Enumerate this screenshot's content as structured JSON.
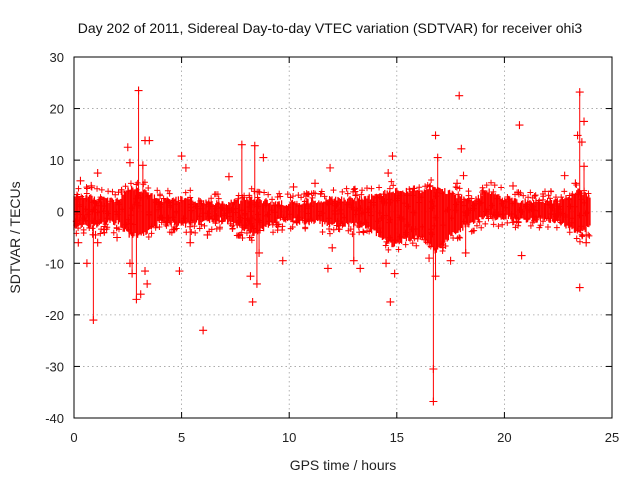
{
  "chart_data": {
    "type": "scatter",
    "title": "Day 202 of 2011, Sidereal Day-to-day VTEC variation (SDTVAR) for receiver ohi3",
    "xlabel": "GPS time / hours",
    "ylabel": "SDTVAR / TECUs",
    "xlim": [
      0,
      25
    ],
    "ylim": [
      -40,
      30
    ],
    "xticks": [
      0,
      5,
      10,
      15,
      20,
      25
    ],
    "yticks": [
      -40,
      -30,
      -20,
      -10,
      0,
      10,
      20,
      30
    ],
    "xtick_labels": [
      "0",
      "5",
      "10",
      "15",
      "20",
      "25"
    ],
    "ytick_labels": [
      "-40",
      "-30",
      "-20",
      "-10",
      "0",
      "10",
      "20",
      "30"
    ],
    "grid": true,
    "marker": "plus",
    "color": "#ff0000",
    "series": [
      {
        "name": "SDTVAR",
        "envelope": [
          {
            "x": 0.0,
            "lo": -2.5,
            "hi": 2.5
          },
          {
            "x": 0.5,
            "lo": -2.0,
            "hi": 2.5
          },
          {
            "x": 1.0,
            "lo": -2.0,
            "hi": 2.0
          },
          {
            "x": 2.0,
            "lo": -1.5,
            "hi": 1.5
          },
          {
            "x": 2.6,
            "lo": -4.0,
            "hi": 4.0
          },
          {
            "x": 3.2,
            "lo": -4.0,
            "hi": 3.5
          },
          {
            "x": 4.0,
            "lo": -1.5,
            "hi": 1.5
          },
          {
            "x": 5.0,
            "lo": -2.0,
            "hi": 2.0
          },
          {
            "x": 6.0,
            "lo": -1.5,
            "hi": 1.5
          },
          {
            "x": 7.0,
            "lo": -1.0,
            "hi": 1.0
          },
          {
            "x": 8.3,
            "lo": -4.0,
            "hi": 2.0
          },
          {
            "x": 9.5,
            "lo": -1.0,
            "hi": 1.0
          },
          {
            "x": 11.0,
            "lo": -1.5,
            "hi": 1.5
          },
          {
            "x": 12.0,
            "lo": -2.0,
            "hi": 2.0
          },
          {
            "x": 13.5,
            "lo": -2.0,
            "hi": 2.0
          },
          {
            "x": 14.8,
            "lo": -6.0,
            "hi": 3.5
          },
          {
            "x": 16.0,
            "lo": -4.0,
            "hi": 3.5
          },
          {
            "x": 16.8,
            "lo": -7.0,
            "hi": 4.0
          },
          {
            "x": 17.5,
            "lo": -4.0,
            "hi": 3.0
          },
          {
            "x": 18.5,
            "lo": -1.5,
            "hi": 1.5
          },
          {
            "x": 19.3,
            "lo": -0.5,
            "hi": 3.5
          },
          {
            "x": 20.0,
            "lo": -0.5,
            "hi": 2.0
          },
          {
            "x": 21.0,
            "lo": -1.0,
            "hi": 1.5
          },
          {
            "x": 22.5,
            "lo": -1.0,
            "hi": 1.5
          },
          {
            "x": 23.5,
            "lo": -4.0,
            "hi": 3.5
          },
          {
            "x": 24.0,
            "lo": -2.0,
            "hi": 2.0
          }
        ],
        "outliers": [
          {
            "x": 0.2,
            "y": -6
          },
          {
            "x": 0.3,
            "y": 6
          },
          {
            "x": 0.6,
            "y": -10
          },
          {
            "x": 0.8,
            "y": 5
          },
          {
            "x": 0.9,
            "y": -21
          },
          {
            "x": 1.0,
            "y": -4.5
          },
          {
            "x": 1.1,
            "y": -6
          },
          {
            "x": 1.1,
            "y": 7.5
          },
          {
            "x": 2.0,
            "y": -5
          },
          {
            "x": 2.5,
            "y": 12.5
          },
          {
            "x": 2.6,
            "y": -10
          },
          {
            "x": 2.6,
            "y": 9.5
          },
          {
            "x": 2.7,
            "y": -12
          },
          {
            "x": 2.9,
            "y": -17
          },
          {
            "x": 3.0,
            "y": 23.5
          },
          {
            "x": 3.1,
            "y": -16
          },
          {
            "x": 3.2,
            "y": 9
          },
          {
            "x": 3.3,
            "y": 13.8
          },
          {
            "x": 3.3,
            "y": -11.5
          },
          {
            "x": 3.4,
            "y": -14
          },
          {
            "x": 3.5,
            "y": 13.8
          },
          {
            "x": 4.9,
            "y": -11.5
          },
          {
            "x": 5.0,
            "y": 10.8
          },
          {
            "x": 5.2,
            "y": 8.5
          },
          {
            "x": 5.4,
            "y": -6
          },
          {
            "x": 6.0,
            "y": -23
          },
          {
            "x": 6.2,
            "y": -4.5
          },
          {
            "x": 7.2,
            "y": 6.8
          },
          {
            "x": 7.8,
            "y": 13
          },
          {
            "x": 8.2,
            "y": -12.5
          },
          {
            "x": 8.3,
            "y": -17.5
          },
          {
            "x": 8.4,
            "y": 12.8
          },
          {
            "x": 8.5,
            "y": -14
          },
          {
            "x": 8.6,
            "y": -8
          },
          {
            "x": 8.8,
            "y": 10.5
          },
          {
            "x": 9.7,
            "y": -9.5
          },
          {
            "x": 10.2,
            "y": 4.8
          },
          {
            "x": 11.2,
            "y": 5.5
          },
          {
            "x": 11.8,
            "y": -11
          },
          {
            "x": 11.9,
            "y": 8.5
          },
          {
            "x": 12.0,
            "y": -7
          },
          {
            "x": 13.0,
            "y": -9.5
          },
          {
            "x": 13.3,
            "y": -11
          },
          {
            "x": 14.5,
            "y": -10
          },
          {
            "x": 14.6,
            "y": 7.5
          },
          {
            "x": 14.7,
            "y": -17.5
          },
          {
            "x": 14.8,
            "y": 10.8
          },
          {
            "x": 14.9,
            "y": -12
          },
          {
            "x": 16.5,
            "y": -9
          },
          {
            "x": 16.7,
            "y": -30.5
          },
          {
            "x": 16.7,
            "y": -36.8
          },
          {
            "x": 16.8,
            "y": 14.8
          },
          {
            "x": 16.8,
            "y": -12.5
          },
          {
            "x": 16.9,
            "y": 10.5
          },
          {
            "x": 17.5,
            "y": -9.5
          },
          {
            "x": 17.8,
            "y": 5.5
          },
          {
            "x": 17.9,
            "y": 22.5
          },
          {
            "x": 18.0,
            "y": 12.2
          },
          {
            "x": 18.1,
            "y": 7
          },
          {
            "x": 18.2,
            "y": -8
          },
          {
            "x": 20.4,
            "y": 5
          },
          {
            "x": 20.7,
            "y": 16.8
          },
          {
            "x": 20.8,
            "y": -8.5
          },
          {
            "x": 22.8,
            "y": 7
          },
          {
            "x": 23.3,
            "y": 5.5
          },
          {
            "x": 23.4,
            "y": 14.8
          },
          {
            "x": 23.5,
            "y": 23.2
          },
          {
            "x": 23.5,
            "y": -14.7
          },
          {
            "x": 23.6,
            "y": 13.5
          },
          {
            "x": 23.7,
            "y": 17.5
          },
          {
            "x": 23.7,
            "y": 8.8
          },
          {
            "x": 23.8,
            "y": -6
          }
        ]
      }
    ]
  }
}
